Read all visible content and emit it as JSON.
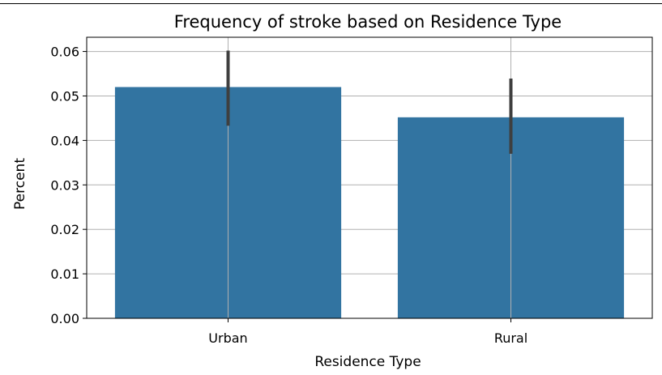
{
  "chart_data": {
    "type": "bar",
    "title": "Frequency of stroke based on Residence Type",
    "xlabel": "Residence Type",
    "ylabel": "Percent",
    "categories": [
      "Urban",
      "Rural"
    ],
    "values": [
      0.052,
      0.0452
    ],
    "error_bars": [
      {
        "low": 0.0433,
        "high": 0.0602
      },
      {
        "low": 0.037,
        "high": 0.0539
      }
    ],
    "ylim": [
      0,
      0.0632
    ],
    "yticks": [
      "0.00",
      "0.01",
      "0.02",
      "0.03",
      "0.04",
      "0.05",
      "0.06"
    ],
    "grid": true,
    "colors": {
      "bar": "#3274a1",
      "error_bar": "#3f3f3f",
      "grid": "#b0b0b0",
      "axis": "#000000"
    }
  }
}
